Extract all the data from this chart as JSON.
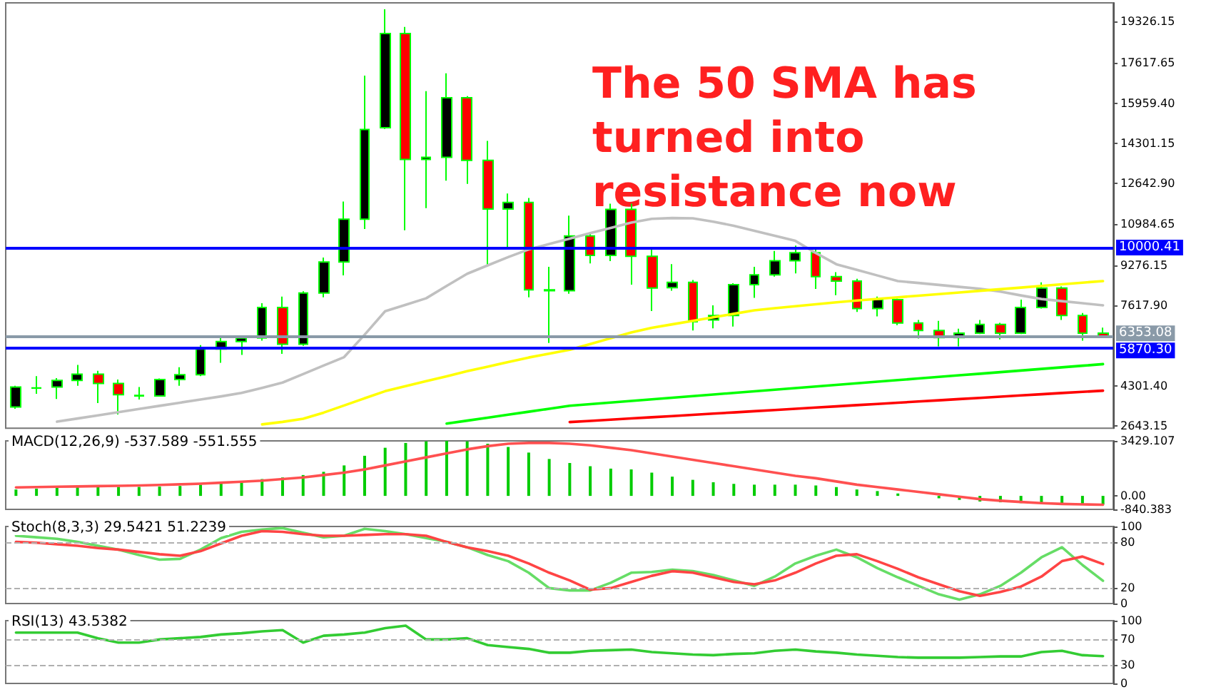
{
  "chart_data": [
    {
      "type": "candlestick",
      "categories": [
        null,
        null,
        null,
        null,
        null,
        null,
        null,
        null,
        null,
        null,
        null,
        null,
        null,
        null,
        null,
        null,
        null,
        null,
        null,
        null,
        null,
        null,
        null,
        null,
        null,
        null,
        null,
        null,
        null,
        null,
        null,
        null,
        null,
        null,
        null,
        null,
        null,
        null,
        null,
        null,
        null,
        null,
        null,
        null,
        null,
        null,
        null,
        null,
        null,
        null,
        null,
        null,
        null,
        null
      ],
      "ohlc": [
        [
          3424,
          4300,
          3350,
          4245
        ],
        [
          4200,
          4700,
          3970,
          4210
        ],
        [
          4245,
          4612,
          3753,
          4519
        ],
        [
          4519,
          5159,
          4300,
          4776
        ],
        [
          4776,
          4918,
          3585,
          4393
        ],
        [
          4393,
          4557,
          3113,
          3933
        ],
        [
          3900,
          4245,
          3736,
          3880
        ],
        [
          3879,
          4600,
          3850,
          4557
        ],
        [
          4557,
          5066,
          4300,
          4754
        ],
        [
          4754,
          5979,
          4700,
          5815
        ],
        [
          5815,
          6340,
          5246,
          6122
        ],
        [
          6122,
          6340,
          5574,
          6269
        ],
        [
          6269,
          7708,
          6160,
          7527
        ],
        [
          7527,
          7981,
          5613,
          6012
        ],
        [
          6012,
          8200,
          5950,
          8129
        ],
        [
          8129,
          9589,
          7948,
          9403
        ],
        [
          9403,
          11903,
          8856,
          11176
        ],
        [
          11176,
          17100,
          10771,
          14873
        ],
        [
          14950,
          19835,
          14900,
          18834
        ],
        [
          18834,
          19107,
          10716,
          13637
        ],
        [
          13637,
          16460,
          11630,
          13725
        ],
        [
          13725,
          17193,
          12762,
          16186
        ],
        [
          16186,
          16250,
          12631,
          13599
        ],
        [
          13599,
          14403,
          9223,
          11591
        ],
        [
          11591,
          12231,
          9989,
          11865
        ],
        [
          11865,
          12051,
          7948,
          8255
        ],
        [
          8255,
          9207,
          6067,
          8222
        ],
        [
          8222,
          11318,
          8100,
          10481
        ],
        [
          10481,
          10629,
          9349,
          9677
        ],
        [
          9677,
          11810,
          9442,
          11575
        ],
        [
          11575,
          11810,
          8474,
          9644
        ],
        [
          9644,
          9989,
          7380,
          8331
        ],
        [
          8348,
          9316,
          8222,
          8566
        ],
        [
          8566,
          8660,
          6581,
          6942
        ],
        [
          7018,
          7620,
          6669,
          7199
        ],
        [
          7199,
          8528,
          6745,
          8474
        ],
        [
          8474,
          9207,
          7927,
          8878
        ],
        [
          8878,
          9863,
          8800,
          9458
        ],
        [
          9458,
          10082,
          8933,
          9786
        ],
        [
          9786,
          9970,
          8293,
          8802
        ],
        [
          8802,
          8988,
          8036,
          8621
        ],
        [
          8621,
          8714,
          7348,
          7489
        ],
        [
          7489,
          7981,
          7161,
          7855
        ],
        [
          7855,
          7900,
          6800,
          6888
        ],
        [
          6888,
          7018,
          6253,
          6581
        ],
        [
          6581,
          6980,
          5925,
          6286
        ],
        [
          6286,
          6652,
          5925,
          6472
        ],
        [
          6472,
          7018,
          6434,
          6833
        ],
        [
          6833,
          6900,
          6215,
          6472
        ],
        [
          6472,
          7855,
          6434,
          7527
        ],
        [
          7527,
          8566,
          7489,
          8331
        ],
        [
          8331,
          8400,
          7018,
          7199
        ],
        [
          7199,
          7300,
          6160,
          6472
        ],
        [
          6472,
          6700,
          6300,
          6353
        ]
      ],
      "series": [
        {
          "type": "line",
          "color": "#c0c0c0",
          "values": [
            null,
            null,
            2818,
            2949,
            3080,
            3210,
            3340,
            3471,
            3602,
            3732,
            3862,
            4004,
            4210,
            4431,
            4782,
            5132,
            5482,
            6408,
            7376,
            7642,
            7908,
            8420,
            8921,
            9266,
            9608,
            9926,
            10149,
            10373,
            10597,
            10815,
            11030,
            11187,
            11222,
            11210,
            11071,
            10902,
            10694,
            10487,
            10279,
            9776,
            9314,
            9082,
            8851,
            8620,
            8541,
            8461,
            8381,
            8301,
            8187,
            8027,
            7880,
            7792,
            7705,
            7620
          ]
        },
        {
          "type": "line",
          "color": "#ffff00",
          "values": [
            null,
            null,
            null,
            null,
            null,
            null,
            null,
            null,
            null,
            null,
            null,
            null,
            2705,
            2808,
            2937,
            3190,
            3486,
            3782,
            4075,
            4281,
            4487,
            4692,
            4899,
            5090,
            5280,
            5465,
            5625,
            5784,
            6020,
            6260,
            6501,
            6690,
            6834,
            6979,
            7123,
            7268,
            7412,
            7502,
            7582,
            7661,
            7741,
            7818,
            7884,
            7951,
            8017,
            8084,
            8150,
            8217,
            8284,
            8351,
            8419,
            8487,
            8555,
            8621
          ]
        },
        {
          "type": "line",
          "color": "#00ff00",
          "values": [
            null,
            null,
            null,
            null,
            null,
            null,
            null,
            null,
            null,
            null,
            null,
            null,
            null,
            null,
            null,
            null,
            null,
            null,
            null,
            null,
            null,
            2738,
            2860,
            2984,
            3106,
            3228,
            3351,
            3473,
            3542,
            3609,
            3675,
            3741,
            3807,
            3873,
            3939,
            4005,
            4071,
            4137,
            4203,
            4269,
            4335,
            4401,
            4467,
            4533,
            4599,
            4665,
            4731,
            4797,
            4863,
            4929,
            4995,
            5060,
            5126,
            5192
          ]
        },
        {
          "type": "line",
          "color": "#ff0000",
          "values": [
            null,
            null,
            null,
            null,
            null,
            null,
            null,
            null,
            null,
            null,
            null,
            null,
            null,
            null,
            null,
            null,
            null,
            null,
            null,
            null,
            null,
            null,
            null,
            null,
            null,
            null,
            null,
            2800,
            2850,
            2900,
            2950,
            3000,
            3050,
            3100,
            3150,
            3200,
            3250,
            3300,
            3350,
            3400,
            3450,
            3500,
            3550,
            3600,
            3650,
            3700,
            3750,
            3800,
            3850,
            3900,
            3950,
            4000,
            4049,
            4098
          ]
        }
      ],
      "ylim": [
        2550,
        20100
      ],
      "yticks": [
        {
          "value": 2643.15,
          "label": "2643.15"
        },
        {
          "value": 4301.4,
          "label": "4301.40"
        },
        {
          "value": 7617.9,
          "label": "7617.90"
        },
        {
          "value": 9276.15,
          "label": "9276.15"
        },
        {
          "value": 10984.65,
          "label": "10984.65"
        },
        {
          "value": 12642.9,
          "label": "12642.90"
        },
        {
          "value": 14301.15,
          "label": "14301.15"
        },
        {
          "value": 15959.4,
          "label": "15959.40"
        },
        {
          "value": 17617.65,
          "label": "17617.65"
        },
        {
          "value": 19326.15,
          "label": "19326.15"
        }
      ],
      "ref_lines": [
        {
          "axis": "y",
          "value": 10000.41,
          "label": "10000.41",
          "color": "#0000ff"
        },
        {
          "axis": "y",
          "value": 6353.08,
          "label": "6353.08",
          "color": "#8a9aa8"
        },
        {
          "axis": "y",
          "value": 5870.3,
          "label": "5870.30",
          "color": "#0000ff"
        }
      ],
      "annotations": [
        "The 50 SMA has turned into resistance now"
      ],
      "tick_labels": "y"
    },
    {
      "type": "bar",
      "title": "MACD(12,26,9) -537.589 -551.555",
      "categories": [
        null,
        null,
        null,
        null,
        null,
        null,
        null,
        null,
        null,
        null,
        null,
        null,
        null,
        null,
        null,
        null,
        null,
        null,
        null,
        null,
        null,
        null,
        null,
        null,
        null,
        null,
        null,
        null,
        null,
        null,
        null,
        null,
        null,
        null,
        null,
        null,
        null,
        null,
        null,
        null,
        null,
        null,
        null,
        null,
        null,
        null,
        null,
        null,
        null,
        null,
        null,
        null,
        null,
        null
      ],
      "series": [
        {
          "color": "#00cc00",
          "values": [
            400,
            450,
            500,
            550,
            580,
            560,
            560,
            580,
            620,
            700,
            800,
            900,
            1050,
            1150,
            1300,
            1500,
            1900,
            2500,
            3000,
            3300,
            3400,
            3429,
            3400,
            3250,
            3050,
            2700,
            2300,
            2050,
            1850,
            1700,
            1650,
            1450,
            1200,
            1000,
            850,
            750,
            700,
            700,
            700,
            650,
            550,
            400,
            300,
            150,
            0,
            -150,
            -250,
            -350,
            -400,
            -450,
            -450,
            -480,
            -520,
            -537.589
          ]
        },
        {
          "type": "line",
          "color": "#ff5050",
          "values": [
            530,
            550,
            570,
            590,
            610,
            630,
            650,
            680,
            720,
            760,
            820,
            880,
            950,
            1050,
            1150,
            1300,
            1450,
            1650,
            1900,
            2150,
            2400,
            2650,
            2900,
            3100,
            3250,
            3300,
            3300,
            3250,
            3150,
            3000,
            2850,
            2650,
            2450,
            2250,
            2050,
            1850,
            1650,
            1450,
            1250,
            1100,
            900,
            700,
            550,
            400,
            250,
            100,
            -50,
            -200,
            -300,
            -380,
            -450,
            -500,
            -530,
            -551.555
          ]
        }
      ],
      "ylim": [
        -840.383,
        3429.107
      ],
      "yticks": [
        -840.383,
        {
          "value": 0,
          "label": "0.00"
        },
        3429.107
      ],
      "tick_labels": "y"
    },
    {
      "type": "line",
      "title": "Stoch(8,3,3) 29.5421 51.2239",
      "categories": [
        null,
        null,
        null,
        null,
        null,
        null,
        null,
        null,
        null,
        null,
        null,
        null,
        null,
        null,
        null,
        null,
        null,
        null,
        null,
        null,
        null,
        null,
        null,
        null,
        null,
        null,
        null,
        null,
        null,
        null,
        null,
        null,
        null,
        null,
        null,
        null,
        null,
        null,
        null,
        null,
        null,
        null,
        null,
        null,
        null,
        null,
        null,
        null,
        null,
        null,
        null,
        null,
        null,
        null
      ],
      "series": [
        {
          "color": "#66dd66",
          "values": [
            88,
            86,
            84,
            80,
            75,
            70,
            63,
            57,
            58,
            70,
            85,
            93,
            96,
            98,
            92,
            86,
            88,
            97,
            94,
            90,
            85,
            80,
            73,
            63,
            55,
            40,
            20,
            17,
            17,
            27,
            40,
            41,
            44,
            42,
            37,
            30,
            23,
            35,
            52,
            62,
            70,
            60,
            46,
            34,
            23,
            12,
            5,
            12,
            23,
            40,
            60,
            73,
            50,
            29.5421
          ]
        },
        {
          "color": "#ff4444",
          "values": [
            80,
            79,
            77,
            75,
            72,
            70,
            67,
            64,
            62,
            68,
            78,
            88,
            94,
            93,
            90,
            88,
            88,
            89,
            90,
            90,
            88,
            80,
            73,
            68,
            62,
            52,
            40,
            30,
            18,
            20,
            28,
            36,
            42,
            40,
            34,
            28,
            25,
            30,
            40,
            52,
            62,
            64,
            55,
            45,
            34,
            25,
            16,
            10,
            15,
            22,
            35,
            55,
            61,
            51.2239
          ]
        }
      ],
      "ylim": [
        0,
        100
      ],
      "yticks": [
        0,
        20,
        80,
        100
      ],
      "ref_lines": [
        {
          "axis": "y",
          "value": 20,
          "color": "#b0b0b0",
          "line_style": "dashed"
        },
        {
          "axis": "y",
          "value": 80,
          "color": "#b0b0b0",
          "line_style": "dashed"
        }
      ],
      "tick_labels": "y"
    },
    {
      "type": "line",
      "title": "RSI(13) 43.5382",
      "categories": [
        null,
        null,
        null,
        null,
        null,
        null,
        null,
        null,
        null,
        null,
        null,
        null,
        null,
        null,
        null,
        null,
        null,
        null,
        null,
        null,
        null,
        null,
        null,
        null,
        null,
        null,
        null,
        null,
        null,
        null,
        null,
        null,
        null,
        null,
        null,
        null,
        null,
        null,
        null,
        null,
        null,
        null,
        null,
        null,
        null,
        null,
        null,
        null,
        null,
        null,
        null,
        null,
        null,
        null
      ],
      "series": [
        {
          "color": "#33cc33",
          "values": [
            81,
            81,
            81,
            81,
            72,
            65,
            65,
            70,
            72,
            74,
            78,
            80,
            83,
            85,
            65,
            76,
            78,
            81,
            88,
            92,
            70,
            70,
            72,
            61,
            58,
            55,
            49,
            49,
            52,
            53,
            54,
            50,
            48,
            46,
            45,
            47,
            48,
            52,
            54,
            51,
            49,
            46,
            44,
            42,
            41,
            41,
            41,
            42,
            43,
            43,
            50,
            52,
            45,
            43.5382
          ]
        }
      ],
      "ylim": [
        0,
        100
      ],
      "yticks": [
        0,
        30,
        70,
        100
      ],
      "ref_lines": [
        {
          "axis": "y",
          "value": 30,
          "color": "#b0b0b0",
          "line_style": "dashed"
        },
        {
          "axis": "y",
          "value": 70,
          "color": "#b0b0b0",
          "line_style": "dashed"
        }
      ],
      "tick_labels": "y"
    }
  ]
}
